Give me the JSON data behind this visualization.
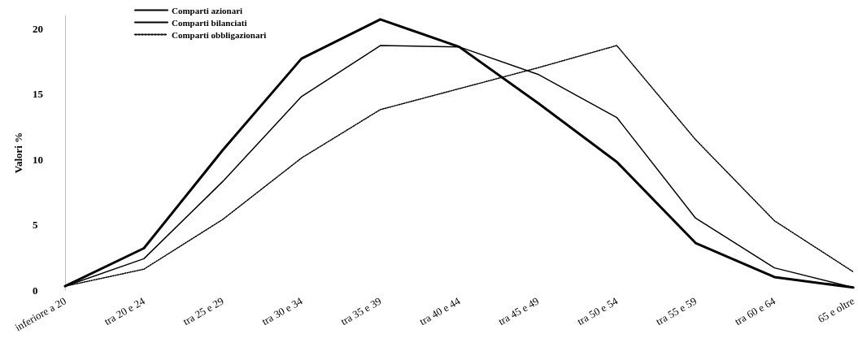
{
  "chart_data": {
    "type": "line",
    "ylabel": "Valori %",
    "categories": [
      "inferiore a 20",
      "tra 20 e 24",
      "tra 25 e 29",
      "tra 30 e 34",
      "tra 35 e 39",
      "tra 40 e 44",
      "tra 45 e 49",
      "tra 50 e 54",
      "tra 55 e 59",
      "tra 60 e 64",
      "65 e oltre"
    ],
    "series": [
      {
        "name": "Comparti azionari",
        "color": "#000000",
        "line_style": "solid",
        "values": [
          0.3,
          3.2,
          10.7,
          17.7,
          20.7,
          18.6,
          14.3,
          9.8,
          3.6,
          1.0,
          0.2
        ]
      },
      {
        "name": "Comparti bilanciati",
        "color": "#000000",
        "line_style": "solid",
        "values": [
          0.3,
          2.4,
          8.3,
          14.8,
          18.7,
          18.6,
          16.5,
          13.2,
          5.5,
          1.7,
          0.2
        ]
      },
      {
        "name": "Comparti obbligazionari",
        "color": "#000000",
        "line_style": "dotted",
        "values": [
          0.3,
          1.6,
          5.4,
          10.1,
          13.8,
          15.4,
          17.0,
          18.7,
          11.5,
          5.3,
          1.4
        ]
      }
    ],
    "ylim": [
      0,
      21
    ],
    "yticks": [
      0,
      5,
      10,
      15,
      20
    ],
    "grid": false,
    "legend": "top left",
    "marker": "none"
  }
}
